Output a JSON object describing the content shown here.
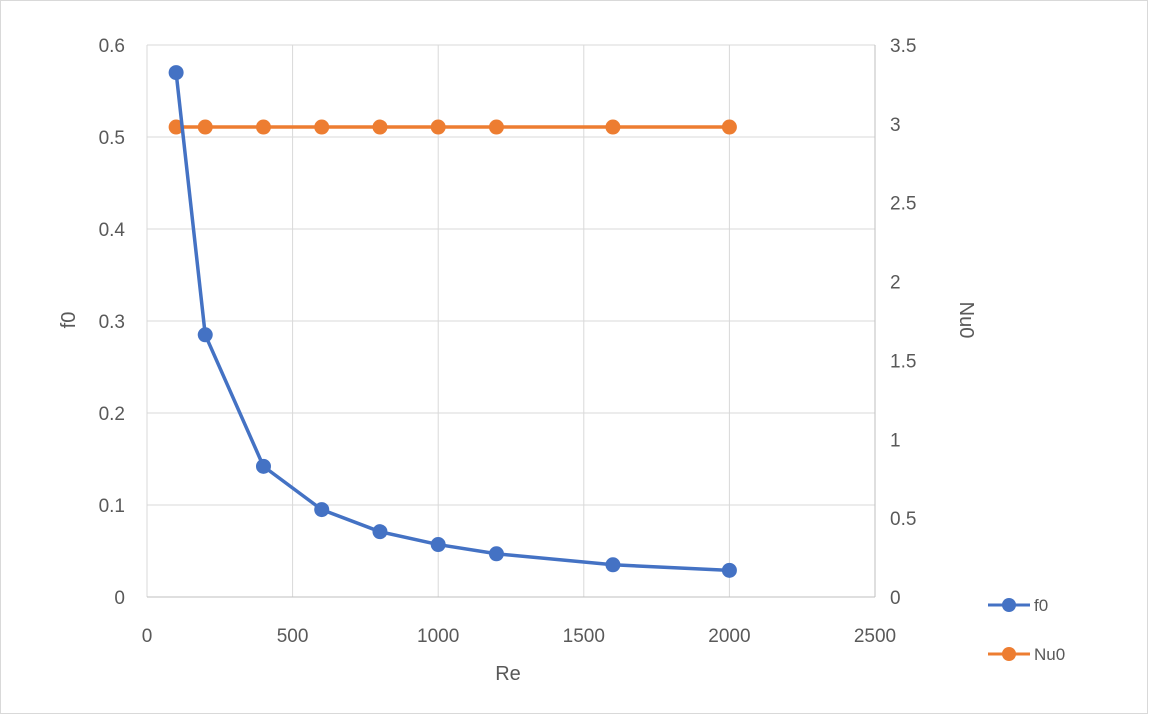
{
  "chart_data": {
    "type": "line",
    "title": "",
    "xlabel": "Re",
    "ylabel": "f0",
    "y2label": "Nu0",
    "xlim": [
      0,
      2500
    ],
    "ylim": [
      0,
      0.6
    ],
    "y2lim": [
      0,
      3.5
    ],
    "x_ticks": [
      "0",
      "500",
      "1000",
      "1500",
      "2000",
      "2500"
    ],
    "y_ticks": [
      "0",
      "0.1",
      "0.2",
      "0.3",
      "0.4",
      "0.5",
      "0.6"
    ],
    "y2_ticks": [
      "0",
      "0.5",
      "1",
      "1.5",
      "2",
      "2.5",
      "3",
      "3.5"
    ],
    "grid": true,
    "legend_position": "right",
    "series": [
      {
        "name": "f0",
        "axis": "left",
        "color": "#4472C4",
        "x": [
          100,
          200,
          400,
          600,
          800,
          1000,
          1200,
          1600,
          2000
        ],
        "y": [
          0.57,
          0.285,
          0.142,
          0.095,
          0.071,
          0.057,
          0.047,
          0.035,
          0.029
        ]
      },
      {
        "name": "Nu0",
        "axis": "right",
        "color": "#ED7D31",
        "x": [
          100,
          200,
          400,
          600,
          800,
          1000,
          1200,
          1600,
          2000
        ],
        "y": [
          2.98,
          2.98,
          2.98,
          2.98,
          2.98,
          2.98,
          2.98,
          2.98,
          2.98
        ]
      }
    ]
  }
}
